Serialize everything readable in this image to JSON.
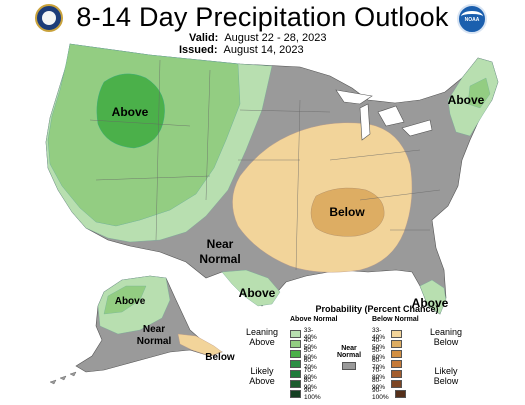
{
  "header": {
    "title": "8-14 Day Precipitation Outlook",
    "valid_label": "Valid:",
    "valid_value": "August 22 - 28, 2023",
    "issued_label": "Issued:",
    "issued_value": "August 14, 2023",
    "left_logo": "us-department-of-commerce-seal",
    "right_logo": "noaa-logo"
  },
  "map_labels": {
    "above_west": "Above",
    "above_northeast": "Above",
    "above_gulf": "Above",
    "above_florida": "Above",
    "below_central": "Below",
    "near_normal_line1": "Near",
    "near_normal_line2": "Normal",
    "alaska_above": "Above",
    "alaska_near_line1": "Near",
    "alaska_near_line2": "Normal",
    "alaska_below": "Below"
  },
  "legend": {
    "title": "Probability (Percent Chance)",
    "above_header": "Above Normal",
    "below_header": "Below Normal",
    "near_label_line1": "Near",
    "near_label_line2": "Normal",
    "leaning_above": [
      "Leaning",
      "Above"
    ],
    "likely_above": [
      "Likely",
      "Above"
    ],
    "leaning_below": [
      "Leaning",
      "Below"
    ],
    "likely_below": [
      "Likely",
      "Below"
    ],
    "above_bins": [
      {
        "label": "33-40%",
        "color": "#b8dfb0"
      },
      {
        "label": "40-50%",
        "color": "#93cd82"
      },
      {
        "label": "50-60%",
        "color": "#4bb04a"
      },
      {
        "label": "60-70%",
        "color": "#2d8f45"
      },
      {
        "label": "70-80%",
        "color": "#1f7a3a"
      },
      {
        "label": "80-90%",
        "color": "#1c5c2e"
      },
      {
        "label": "90-100%",
        "color": "#153f22"
      }
    ],
    "below_bins": [
      {
        "label": "33-40%",
        "color": "#f2d49a"
      },
      {
        "label": "40-50%",
        "color": "#ddad63"
      },
      {
        "label": "50-60%",
        "color": "#d18f43"
      },
      {
        "label": "60-70%",
        "color": "#c57a39"
      },
      {
        "label": "70-80%",
        "color": "#a25d2e"
      },
      {
        "label": "80-90%",
        "color": "#7c4524"
      },
      {
        "label": "90-100%",
        "color": "#55301a"
      }
    ],
    "near_color": "#9a9a9a"
  },
  "colors": {
    "near_normal": "#9a9a9a",
    "water": "#ffffff",
    "above_33_40": "#b8dfb0",
    "above_40_50": "#93cd82",
    "above_50_60": "#4bb04a",
    "below_33_40": "#f2d49a",
    "below_40_50": "#ddad63"
  }
}
